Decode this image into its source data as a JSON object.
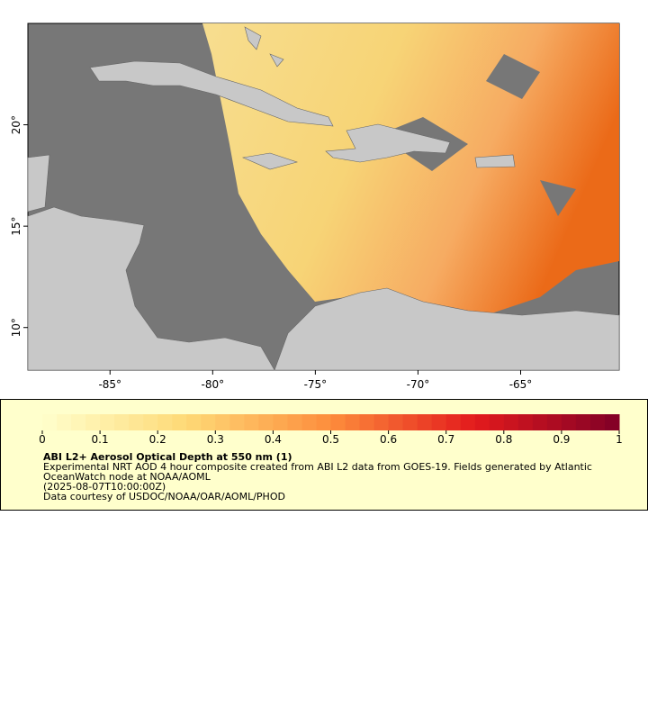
{
  "map": {
    "xlim": [
      -89,
      -60.2
    ],
    "ylim": [
      7.9,
      25
    ],
    "xticks": [
      {
        "value": -85,
        "label": "-85°"
      },
      {
        "value": -80,
        "label": "-80°"
      },
      {
        "value": -75,
        "label": "-75°"
      },
      {
        "value": -70,
        "label": "-70°"
      },
      {
        "value": -65,
        "label": "-65°"
      }
    ],
    "yticks": [
      {
        "value": 10,
        "label": "10°"
      },
      {
        "value": 15,
        "label": "15°"
      },
      {
        "value": 20,
        "label": "20°"
      }
    ]
  },
  "colorbar": {
    "lim": [
      0,
      1
    ],
    "ticks": [
      0,
      0.1,
      0.2,
      0.3,
      0.4,
      0.5,
      0.6,
      0.7,
      0.8,
      0.9,
      1
    ]
  },
  "legend": {
    "title": "ABI L2+ Aerosol Optical Depth at 550 nm (1)",
    "lines": [
      "Experimental NRT AOD 4 hour composite created from ABI L2 data from GOES-19. Fields generated by Atlantic",
      "OceanWatch node at NOAA/AOML",
      "(2025-08-07T10:00:00Z)",
      "Data courtesy of USDOC/NOAA/OAR/AOML/PHOD"
    ]
  }
}
